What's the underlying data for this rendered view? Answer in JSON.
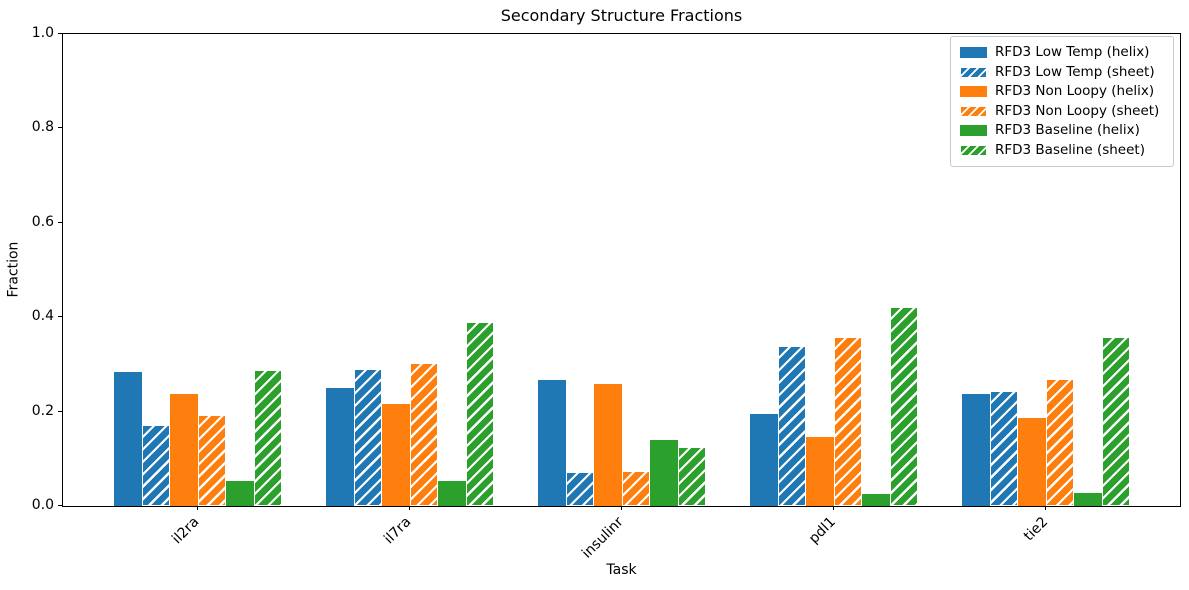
{
  "chart_data": {
    "type": "bar",
    "title": "Secondary Structure Fractions",
    "xlabel": "Task",
    "ylabel": "Fraction",
    "categories": [
      "il2ra",
      "il7ra",
      "insulinr",
      "pdl1",
      "tie2"
    ],
    "series": [
      {
        "name": "RFD3 Low Temp (helix)",
        "color": "#1f77b4",
        "hatch": false,
        "values": [
          0.283,
          0.251,
          0.267,
          0.194,
          0.238
        ]
      },
      {
        "name": "RFD3 Low Temp (sheet)",
        "color": "#1f77b4",
        "hatch": true,
        "values": [
          0.171,
          0.29,
          0.072,
          0.34,
          0.243
        ]
      },
      {
        "name": "RFD3 Non Loopy (helix)",
        "color": "#ff7f0e",
        "hatch": false,
        "values": [
          0.238,
          0.217,
          0.258,
          0.147,
          0.186
        ]
      },
      {
        "name": "RFD3 Non Loopy (sheet)",
        "color": "#ff7f0e",
        "hatch": true,
        "values": [
          0.192,
          0.304,
          0.074,
          0.358,
          0.269
        ]
      },
      {
        "name": "RFD3 Baseline (helix)",
        "color": "#2ca02c",
        "hatch": false,
        "values": [
          0.054,
          0.053,
          0.14,
          0.025,
          0.027
        ]
      },
      {
        "name": "RFD3 Baseline (sheet)",
        "color": "#2ca02c",
        "hatch": true,
        "values": [
          0.288,
          0.39,
          0.125,
          0.421,
          0.358
        ]
      }
    ],
    "ylim": [
      0.0,
      1.0
    ],
    "yticks": [
      0.0,
      0.2,
      0.4,
      0.6,
      0.8,
      1.0
    ],
    "ytick_labels": [
      "0.0",
      "0.2",
      "0.4",
      "0.6",
      "0.8",
      "1.0"
    ],
    "xtick_rotation": 45,
    "hatch_style": "/",
    "legend_position": "upper right",
    "grid": false
  }
}
